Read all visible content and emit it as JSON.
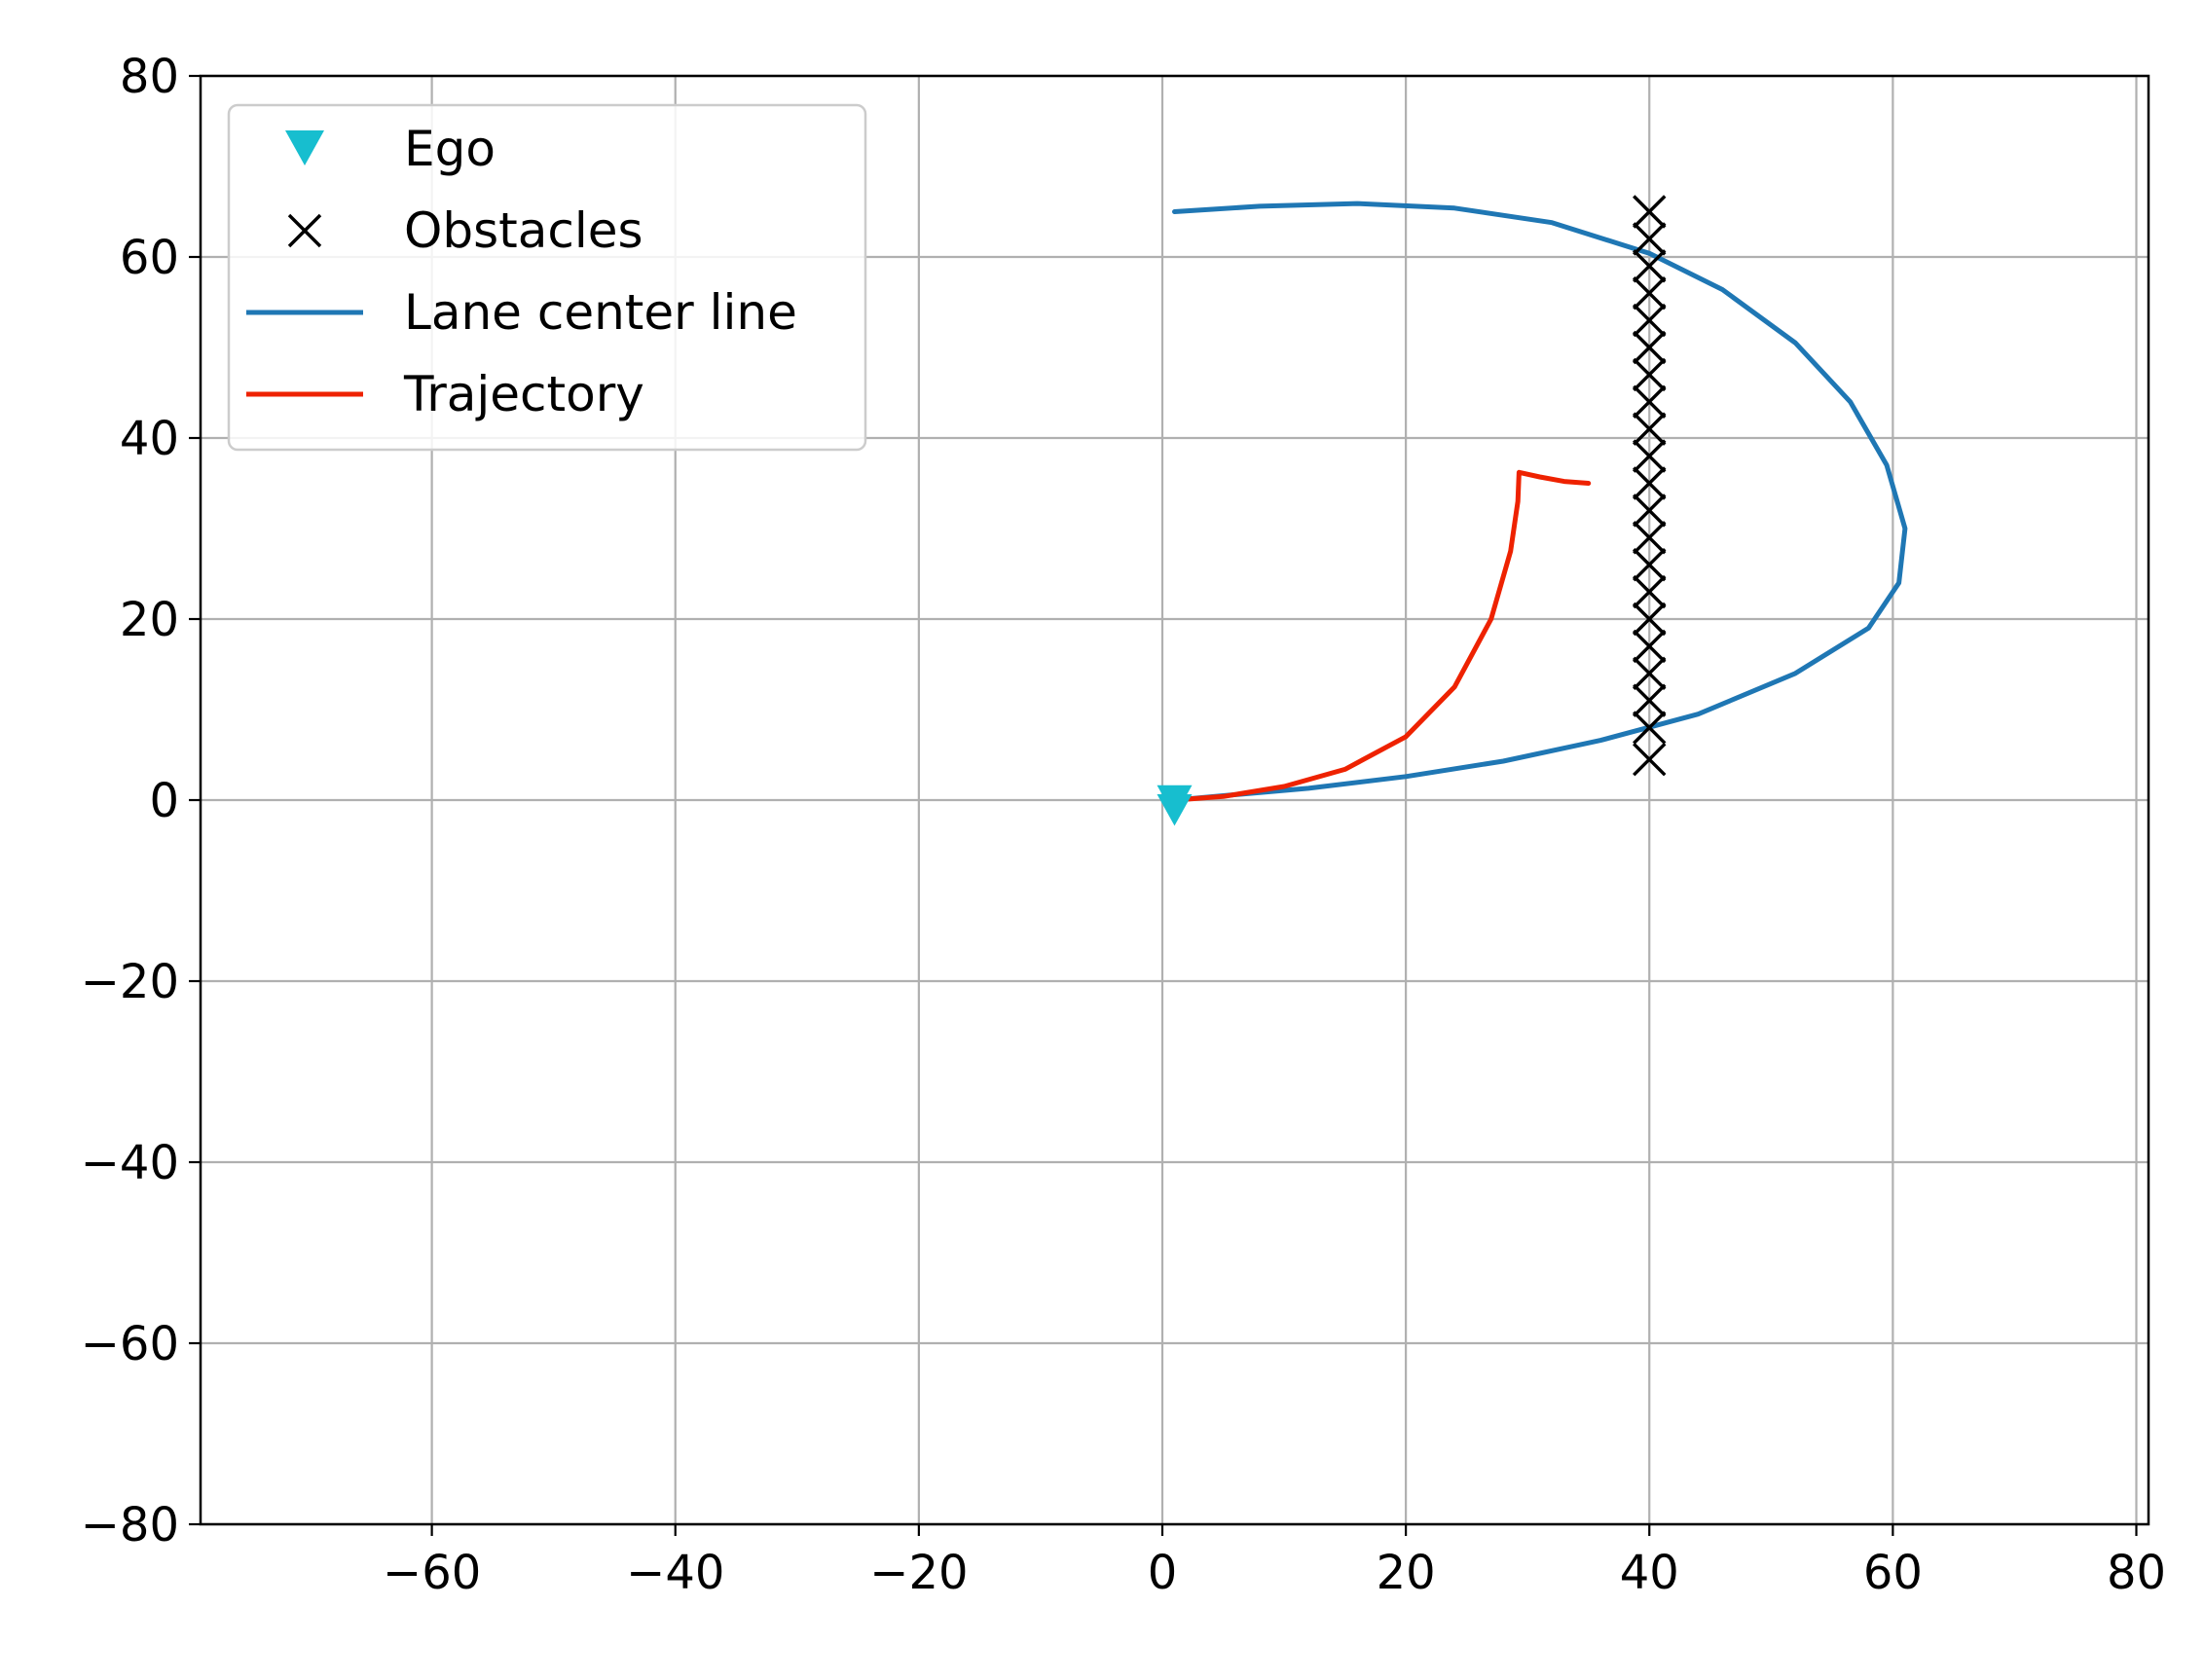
{
  "chart_data": {
    "type": "line",
    "title": "",
    "xlabel": "",
    "ylabel": "",
    "xlim": [
      -79,
      81
    ],
    "ylim": [
      -80,
      80
    ],
    "xticks": [
      -60,
      -40,
      -20,
      0,
      20,
      40,
      60,
      80
    ],
    "yticks": [
      -80,
      -60,
      -40,
      -20,
      0,
      20,
      40,
      60,
      80
    ],
    "xtick_labels": [
      "−60",
      "−40",
      "−20",
      "0",
      "20",
      "40",
      "60",
      "80"
    ],
    "ytick_labels": [
      "−80",
      "−60",
      "−40",
      "−20",
      "0",
      "20",
      "40",
      "60",
      "80"
    ],
    "grid": true,
    "legend_position": "top-left",
    "series": [
      {
        "name": "Ego",
        "kind": "marker",
        "marker": "triangle-down",
        "color": "#17becf",
        "points": [
          [
            1,
            0
          ],
          [
            1,
            -1
          ]
        ]
      },
      {
        "name": "Obstacles",
        "kind": "marker",
        "marker": "x",
        "color": "#000000",
        "points": [
          [
            40,
            4.5
          ],
          [
            40,
            8
          ],
          [
            40,
            11
          ],
          [
            40,
            14
          ],
          [
            40,
            17
          ],
          [
            40,
            20
          ],
          [
            40,
            23
          ],
          [
            40,
            26
          ],
          [
            40,
            29
          ],
          [
            40,
            32
          ],
          [
            40,
            35
          ],
          [
            40,
            38
          ],
          [
            40,
            41
          ],
          [
            40,
            44
          ],
          [
            40,
            47
          ],
          [
            40,
            50
          ],
          [
            40,
            53
          ],
          [
            40,
            56
          ],
          [
            40,
            59
          ],
          [
            40,
            62
          ],
          [
            40,
            65
          ]
        ]
      },
      {
        "name": "Lane center line",
        "kind": "line",
        "color": "#1f77b4",
        "points": [
          [
            1,
            65
          ],
          [
            8,
            65.6
          ],
          [
            16,
            65.9
          ],
          [
            24,
            65.4
          ],
          [
            32,
            63.8
          ],
          [
            40,
            60.4
          ],
          [
            46,
            56.4
          ],
          [
            52,
            50.5
          ],
          [
            56.5,
            44
          ],
          [
            59.5,
            37
          ],
          [
            61,
            30
          ],
          [
            60.5,
            24
          ],
          [
            58,
            19
          ],
          [
            52,
            14
          ],
          [
            44,
            9.5
          ],
          [
            36,
            6.6
          ],
          [
            28,
            4.3
          ],
          [
            20,
            2.6
          ],
          [
            12,
            1.3
          ],
          [
            6,
            0.6
          ],
          [
            1,
            0
          ]
        ]
      },
      {
        "name": "Trajectory",
        "kind": "line",
        "color": "#ee2200",
        "points": [
          [
            1,
            0
          ],
          [
            5,
            0.4
          ],
          [
            10,
            1.5
          ],
          [
            15,
            3.4
          ],
          [
            20,
            7
          ],
          [
            24,
            12.5
          ],
          [
            27,
            20
          ],
          [
            28.6,
            27.5
          ],
          [
            29.2,
            33
          ],
          [
            29.3,
            36.2
          ],
          [
            31,
            35.7
          ],
          [
            33,
            35.2
          ],
          [
            35,
            35
          ]
        ]
      }
    ]
  }
}
